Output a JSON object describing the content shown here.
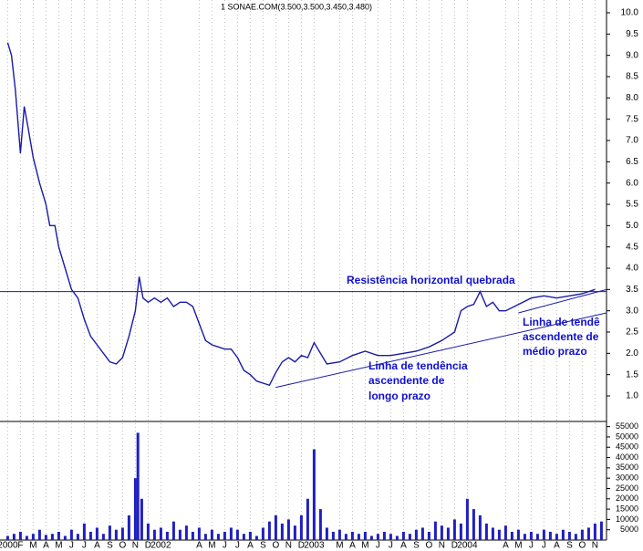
{
  "chart_data": [
    {
      "type": "line",
      "title": "1 SONAE.COM(3.500,3.500,3.450,3.480)",
      "xlim": [
        -0.6,
        46.9
      ],
      "ylim": [
        0.4,
        10.3
      ],
      "yticks": [
        {
          "value": 1,
          "label": "1.0"
        },
        {
          "value": 1.5,
          "label": "1.5"
        },
        {
          "value": 2,
          "label": "2.0"
        },
        {
          "value": 2.5,
          "label": "2.5"
        },
        {
          "value": 3,
          "label": "3.0"
        },
        {
          "value": 3.5,
          "label": "3.5"
        },
        {
          "value": 4,
          "label": "4.0"
        },
        {
          "value": 4.5,
          "label": "4.5"
        },
        {
          "value": 5,
          "label": "5.0"
        },
        {
          "value": 5.5,
          "label": "5.5"
        },
        {
          "value": 6,
          "label": "6.0"
        },
        {
          "value": 6.5,
          "label": "6.5"
        },
        {
          "value": 7,
          "label": "7.0"
        },
        {
          "value": 7.5,
          "label": "7.5"
        },
        {
          "value": 8,
          "label": "8.0"
        },
        {
          "value": 8.5,
          "label": "8.5"
        },
        {
          "value": 9,
          "label": "9.0"
        },
        {
          "value": 9.5,
          "label": "9.5"
        },
        {
          "value": 10,
          "label": "10.0"
        }
      ],
      "series": [
        {
          "color": "#1a1aa8",
          "x": [
            0,
            0.3,
            0.6,
            1,
            1.3,
            1.6,
            2,
            2.5,
            3,
            3.3,
            3.7,
            4,
            4.5,
            5,
            5.5,
            6,
            6.5,
            7,
            7.5,
            8,
            8.5,
            9,
            9.5,
            10,
            10.3,
            10.6,
            11,
            11.5,
            12,
            12.5,
            13,
            13.5,
            14,
            14.5,
            15,
            15.5,
            16,
            16.5,
            17,
            17.5,
            18,
            18.5,
            19,
            19.5,
            20,
            20.5,
            21,
            21.5,
            22,
            22.5,
            23,
            23.5,
            24,
            25,
            26,
            27,
            28,
            29,
            30,
            31,
            32,
            33,
            34,
            35,
            35.5,
            36,
            36.5,
            37,
            37.5,
            38,
            38.5,
            39,
            40,
            41,
            42,
            43,
            44,
            45,
            46
          ],
          "values": [
            9.3,
            9.0,
            8.2,
            6.7,
            7.8,
            7.3,
            6.6,
            6.0,
            5.5,
            5.0,
            5.0,
            4.5,
            4.0,
            3.5,
            3.3,
            2.8,
            2.4,
            2.2,
            2.0,
            1.8,
            1.75,
            1.9,
            2.4,
            3.0,
            3.8,
            3.3,
            3.2,
            3.3,
            3.2,
            3.3,
            3.1,
            3.2,
            3.2,
            3.1,
            2.7,
            2.3,
            2.2,
            2.15,
            2.1,
            2.1,
            1.9,
            1.6,
            1.5,
            1.35,
            1.3,
            1.25,
            1.55,
            1.8,
            1.9,
            1.8,
            1.95,
            1.9,
            2.25,
            1.75,
            1.8,
            1.95,
            2.05,
            1.95,
            1.95,
            2.0,
            2.05,
            2.15,
            2.3,
            2.5,
            3.0,
            3.1,
            3.15,
            3.45,
            3.1,
            3.2,
            3.0,
            3.0,
            3.15,
            3.3,
            3.35,
            3.3,
            3.35,
            3.4,
            3.5
          ]
        }
      ],
      "lines": [
        {
          "x": [
            -0.6,
            46.9
          ],
          "y": [
            3.45,
            3.45
          ]
        },
        {
          "x": [
            21,
            46.9
          ],
          "y": [
            1.2,
            2.95
          ]
        },
        {
          "x": [
            40,
            46.9
          ],
          "y": [
            2.95,
            3.5
          ]
        }
      ],
      "annotations": [
        "Resistência horizontal quebrada",
        "Linha de tendência",
        "ascendente de",
        "longo prazo",
        "Linha de tendê",
        "ascendente de",
        "médio prazo"
      ]
    },
    {
      "type": "bar",
      "color": "#2020c0",
      "xlim": [
        -0.6,
        46.9
      ],
      "ylim": [
        0,
        57500
      ],
      "yticks": [
        5000,
        10000,
        15000,
        20000,
        25000,
        30000,
        35000,
        40000,
        45000,
        50000,
        55000
      ],
      "xticks": [
        {
          "value": 0,
          "label": "2000"
        },
        {
          "value": 1,
          "label": "F"
        },
        {
          "value": 2,
          "label": "M"
        },
        {
          "value": 3,
          "label": "A"
        },
        {
          "value": 4,
          "label": "M"
        },
        {
          "value": 5,
          "label": "J"
        },
        {
          "value": 6,
          "label": "J"
        },
        {
          "value": 7,
          "label": "A"
        },
        {
          "value": 8,
          "label": "S"
        },
        {
          "value": 9,
          "label": "O"
        },
        {
          "value": 10,
          "label": "N"
        },
        {
          "value": 11,
          "label": "D"
        },
        {
          "value": 12,
          "label": "2002"
        },
        {
          "value": 15,
          "label": "A"
        },
        {
          "value": 16,
          "label": "M"
        },
        {
          "value": 17,
          "label": "J"
        },
        {
          "value": 18,
          "label": "J"
        },
        {
          "value": 19,
          "label": "A"
        },
        {
          "value": 20,
          "label": "S"
        },
        {
          "value": 21,
          "label": "O"
        },
        {
          "value": 22,
          "label": "N"
        },
        {
          "value": 23,
          "label": "D"
        },
        {
          "value": 24,
          "label": "2003"
        },
        {
          "value": 26,
          "label": "M"
        },
        {
          "value": 27,
          "label": "A"
        },
        {
          "value": 28,
          "label": "M"
        },
        {
          "value": 29,
          "label": "J"
        },
        {
          "value": 30,
          "label": "J"
        },
        {
          "value": 31,
          "label": "A"
        },
        {
          "value": 32,
          "label": "S"
        },
        {
          "value": 33,
          "label": "O"
        },
        {
          "value": 34,
          "label": "N"
        },
        {
          "value": 35,
          "label": "D"
        },
        {
          "value": 36,
          "label": "2004"
        },
        {
          "value": 39,
          "label": "A"
        },
        {
          "value": 40,
          "label": "M"
        },
        {
          "value": 41,
          "label": "J"
        },
        {
          "value": 42,
          "label": "J"
        },
        {
          "value": 43,
          "label": "A"
        },
        {
          "value": 44,
          "label": "S"
        },
        {
          "value": 45,
          "label": "O"
        },
        {
          "value": 46,
          "label": "N"
        }
      ],
      "x": [
        0,
        0.5,
        1,
        1.5,
        2,
        2.5,
        3,
        3.5,
        4,
        4.5,
        5,
        5.5,
        6,
        6.5,
        7,
        7.5,
        8,
        8.5,
        9,
        9.5,
        10,
        10.2,
        10.5,
        11,
        11.5,
        12,
        12.5,
        13,
        13.5,
        14,
        14.5,
        15,
        15.5,
        16,
        16.5,
        17,
        17.5,
        18,
        18.5,
        19,
        19.5,
        20,
        20.5,
        21,
        21.5,
        22,
        22.5,
        23,
        23.5,
        24,
        24.5,
        25,
        25.5,
        26,
        26.5,
        27,
        27.5,
        28,
        28.5,
        29,
        29.5,
        30,
        30.5,
        31,
        31.5,
        32,
        32.5,
        33,
        33.5,
        34,
        34.5,
        35,
        35.5,
        36,
        36.5,
        37,
        37.5,
        38,
        38.5,
        39,
        39.5,
        40,
        40.5,
        41,
        41.5,
        42,
        42.5,
        43,
        43.5,
        44,
        44.5,
        45,
        45.5,
        46,
        46.5
      ],
      "values": [
        2000,
        3000,
        4000,
        2000,
        3000,
        5000,
        2500,
        3000,
        4000,
        2000,
        5000,
        3000,
        8000,
        4000,
        6000,
        3000,
        7000,
        5000,
        6000,
        12000,
        30000,
        52000,
        20000,
        8000,
        5000,
        6000,
        4000,
        9000,
        5000,
        7000,
        4000,
        6000,
        3000,
        5000,
        3000,
        4000,
        6000,
        5000,
        3000,
        4000,
        2000,
        6000,
        9000,
        12000,
        8000,
        10000,
        7000,
        12000,
        20000,
        44000,
        15000,
        6000,
        4000,
        5000,
        3000,
        4000,
        3000,
        4000,
        2000,
        3000,
        4000,
        3000,
        2000,
        4000,
        3000,
        5000,
        6000,
        4000,
        9000,
        7000,
        6000,
        10000,
        8000,
        20000,
        15000,
        12000,
        8000,
        6000,
        5000,
        7000,
        4000,
        5000,
        3000,
        4000,
        3000,
        5000,
        4000,
        3000,
        5000,
        4000,
        3000,
        5000,
        6000,
        8000,
        9000
      ]
    }
  ]
}
